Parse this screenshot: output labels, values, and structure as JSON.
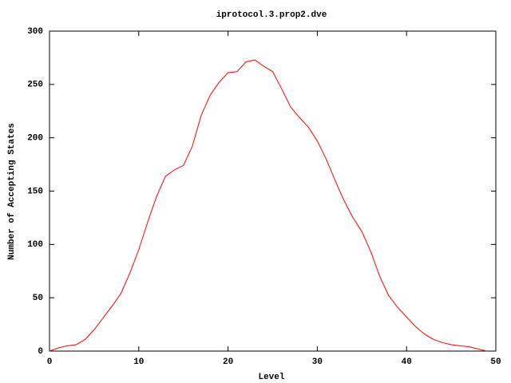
{
  "chart_data": {
    "type": "line",
    "title": "iprotocol.3.prop2.dve",
    "x_label": "Level",
    "y_label": "Number of Accepting States",
    "x": [
      0,
      1,
      2,
      3,
      4,
      5,
      6,
      7,
      8,
      9,
      10,
      11,
      12,
      13,
      14,
      15,
      16,
      17,
      18,
      19,
      20,
      21,
      22,
      23,
      24,
      25,
      26,
      27,
      28,
      29,
      30,
      31,
      32,
      33,
      34,
      35,
      36,
      37,
      38,
      39,
      40,
      41,
      42,
      43,
      44,
      45,
      46,
      47,
      48,
      49
    ],
    "series": [
      {
        "name": "iprotocol.3.prop2.dve",
        "color": "#ff0000",
        "values": [
          0,
          3,
          5,
          6,
          11,
          20,
          31,
          42,
          54,
          73,
          95,
          121,
          145,
          164,
          170,
          174,
          192,
          221,
          240,
          252,
          261,
          262,
          271,
          273,
          267,
          262,
          246,
          229,
          219,
          210,
          197,
          180,
          160,
          141,
          125,
          112,
          93,
          70,
          52,
          41,
          32,
          23,
          16,
          11,
          8,
          6,
          5,
          4,
          2,
          0
        ]
      }
    ],
    "xlim": [
      0,
      50
    ],
    "xticks": [
      0,
      10,
      20,
      30,
      40,
      50
    ],
    "ylim": [
      0,
      300
    ],
    "yticks": [
      0,
      50,
      100,
      150,
      200,
      250,
      300
    ],
    "legend": false
  }
}
